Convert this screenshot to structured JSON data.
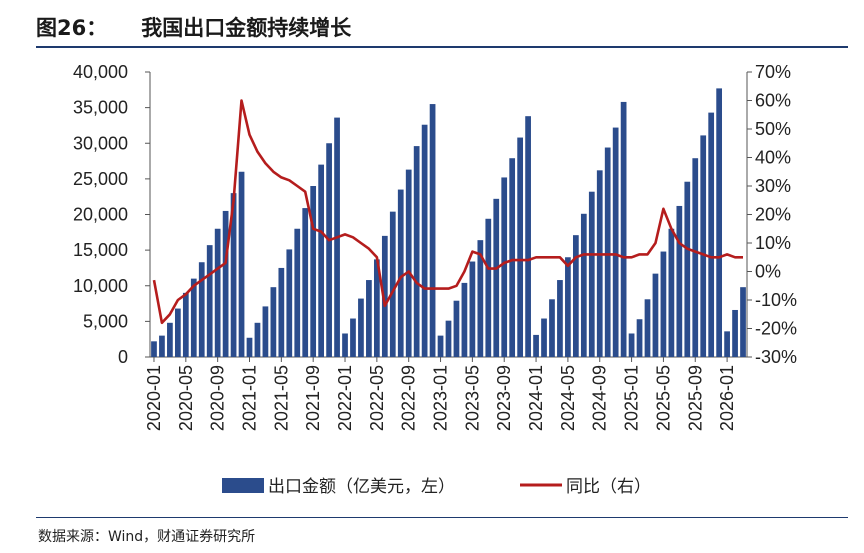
{
  "figure_number": "图26：",
  "figure_title": "我国出口金额持续增长",
  "source": "数据来源：Wind，财通证券研究所",
  "colors": {
    "bar": "#2b4c8c",
    "line": "#b51d1d",
    "rule": "#1e3a6e"
  },
  "chart_data": {
    "type": "bar+line",
    "title": "我国出口金额持续增长",
    "categories": [
      "2020-01",
      "2020-02",
      "2020-03",
      "2020-04",
      "2020-05",
      "2020-06",
      "2020-07",
      "2020-08",
      "2020-09",
      "2020-10",
      "2020-11",
      "2020-12",
      "2021-01",
      "2021-02",
      "2021-03",
      "2021-04",
      "2021-05",
      "2021-06",
      "2021-07",
      "2021-08",
      "2021-09",
      "2021-10",
      "2021-11",
      "2021-12",
      "2022-01",
      "2022-02",
      "2022-03",
      "2022-04",
      "2022-05",
      "2022-06",
      "2022-07",
      "2022-08",
      "2022-09",
      "2022-10",
      "2022-11",
      "2022-12",
      "2023-01",
      "2023-02",
      "2023-03",
      "2023-04",
      "2023-05",
      "2023-06",
      "2023-07",
      "2023-08",
      "2023-09",
      "2023-10",
      "2023-11",
      "2023-12",
      "2024-01",
      "2024-02",
      "2024-03",
      "2024-04",
      "2024-05",
      "2024-06",
      "2024-07",
      "2024-08",
      "2024-09",
      "2024-10",
      "2024-11",
      "2024-12",
      "2025-01",
      "2025-02",
      "2025-03",
      "2025-04",
      "2025-05",
      "2025-06",
      "2025-07",
      "2025-08",
      "2025-09",
      "2025-10",
      "2025-11",
      "2025-12",
      "2026-01",
      "2026-02",
      "2026-03"
    ],
    "x_tick_labels": [
      "2020-01",
      "2020-05",
      "2020-09",
      "2021-01",
      "2021-05",
      "2021-09",
      "2022-01",
      "2022-05",
      "2022-09",
      "2023-01",
      "2023-05",
      "2023-09",
      "2024-01",
      "2024-05",
      "2024-09",
      "2025-01",
      "2025-05",
      "2025-09",
      "2026-01"
    ],
    "series": [
      {
        "name": "出口金额（亿美元，左）",
        "type": "bar",
        "axis": "left",
        "values": [
          2200,
          3000,
          4800,
          6800,
          9000,
          11000,
          13300,
          15700,
          18000,
          20500,
          23000,
          26000,
          2700,
          4800,
          7100,
          9800,
          12500,
          15100,
          18000,
          20900,
          24000,
          27000,
          30000,
          33600,
          3300,
          5400,
          8200,
          10800,
          13700,
          17000,
          20400,
          23500,
          26300,
          29600,
          32600,
          35500,
          3000,
          5100,
          7900,
          10400,
          13400,
          16400,
          19400,
          22200,
          25200,
          27900,
          30800,
          33800,
          3100,
          5400,
          8100,
          10800,
          14000,
          17100,
          20100,
          23200,
          26200,
          29400,
          32200,
          35800,
          3300,
          5300,
          8100,
          11700,
          14800,
          18000,
          21200,
          24600,
          27900,
          31100,
          34300,
          37700,
          3600,
          6600,
          9800
        ]
      },
      {
        "name": "同比（右）",
        "type": "line",
        "axis": "right",
        "values": [
          -3,
          -18,
          -15,
          -10,
          -8,
          -5,
          -3,
          -1,
          1,
          3,
          25,
          60,
          48,
          42,
          38,
          35,
          33,
          32,
          30,
          28,
          15,
          14,
          11,
          12,
          13,
          12,
          10,
          8,
          5,
          -12,
          -7,
          -2,
          0,
          -4,
          -6,
          -6,
          -6,
          -6,
          -5,
          0,
          7,
          6,
          1,
          1,
          3,
          4,
          4,
          4,
          5,
          5,
          5,
          5,
          2,
          5,
          6,
          6,
          6,
          6,
          6,
          5,
          5,
          6,
          6,
          10,
          22,
          15,
          10,
          8,
          7,
          6,
          5,
          5,
          6,
          5,
          5
        ]
      }
    ],
    "y_left": {
      "min": 0,
      "max": 40000,
      "ticks": [
        "0",
        "5,000",
        "10,000",
        "15,000",
        "20,000",
        "25,000",
        "30,000",
        "35,000",
        "40,000"
      ]
    },
    "y_right": {
      "min": -30,
      "max": 70,
      "ticks": [
        "-30%",
        "-20%",
        "-10%",
        "0%",
        "10%",
        "20%",
        "30%",
        "40%",
        "50%",
        "60%",
        "70%"
      ]
    },
    "legend": {
      "bar_label": "出口金额（亿美元，左）",
      "line_label": "同比（右）",
      "position": "bottom"
    }
  }
}
